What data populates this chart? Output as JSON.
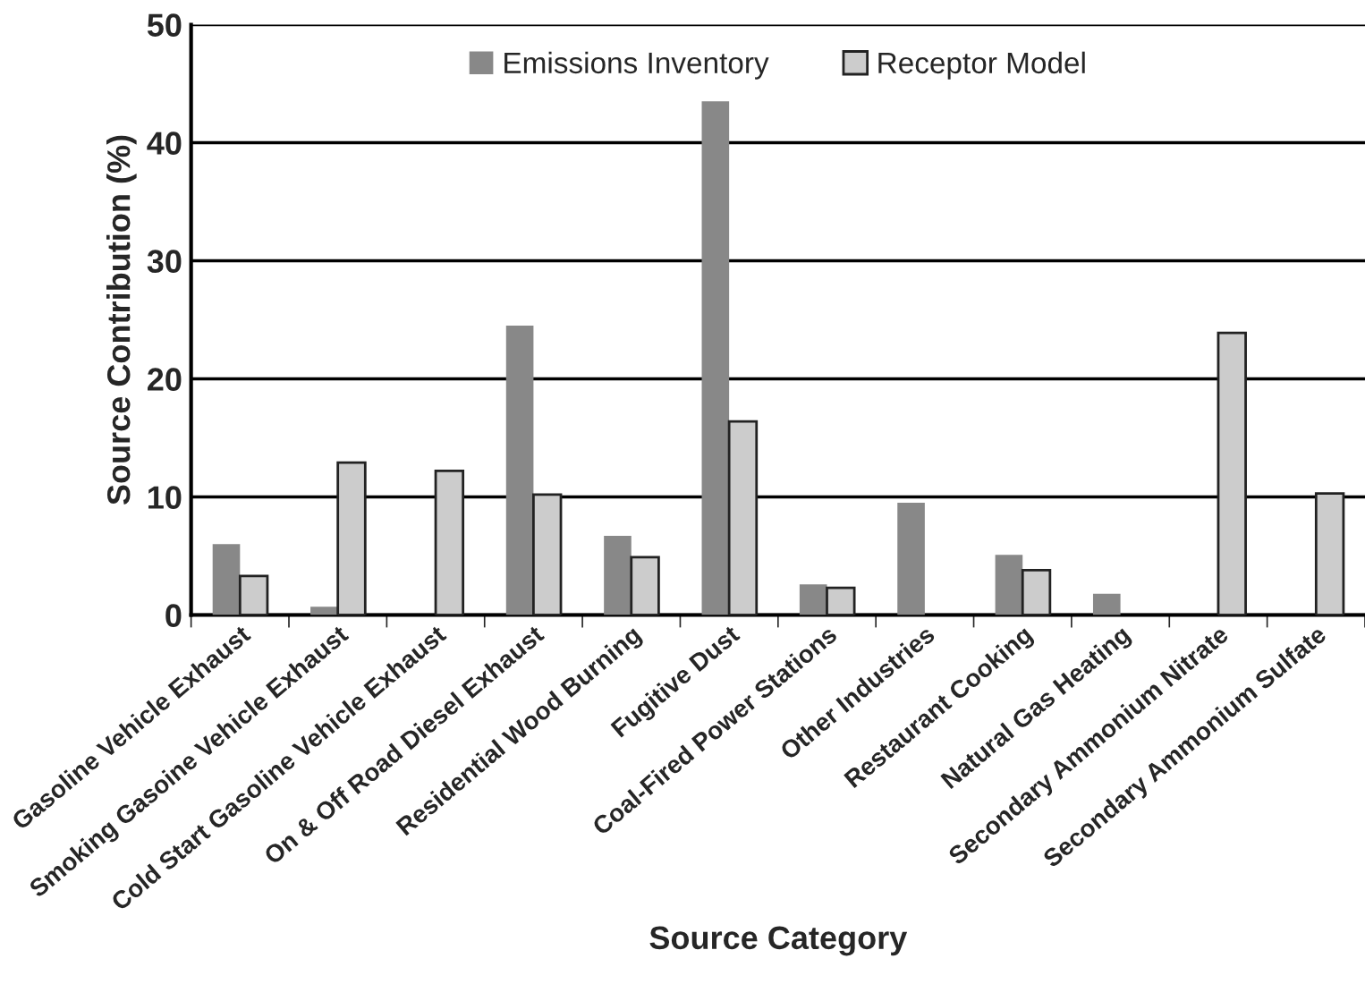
{
  "chart_data": {
    "type": "bar",
    "xlabel": "Source Category",
    "ylabel": "Source Contribution (%)",
    "categories": [
      "Gasoline Vehicle Exhaust",
      "Smoking Gasoine Vehicle Exhaust",
      "Cold Start Gasoline Vehicle Exhaust",
      "On & Off Road Diesel Exhaust",
      "Residential Wood Burning",
      "Fugitive Dust",
      "Coal-Fired Power Stations",
      "Other Industries",
      "Restaurant Cooking",
      "Natural Gas Heating",
      "Secondary Ammonium Nitrate",
      "Secondary Ammonium Sulfate"
    ],
    "series": [
      {
        "name": "Emissions Inventory",
        "color": "#888888",
        "values": [
          6.0,
          0.7,
          null,
          24.5,
          6.7,
          43.5,
          2.6,
          9.5,
          5.1,
          1.8,
          null,
          null
        ]
      },
      {
        "name": "Receptor Model",
        "color": "#cccccc",
        "values": [
          3.3,
          12.9,
          12.2,
          10.2,
          4.9,
          16.4,
          2.3,
          null,
          3.8,
          null,
          23.9,
          10.3
        ]
      }
    ],
    "ylim": [
      0,
      50
    ],
    "yticks": [
      0,
      10,
      20,
      30,
      40,
      50
    ],
    "grid": "y",
    "legend": "top"
  }
}
